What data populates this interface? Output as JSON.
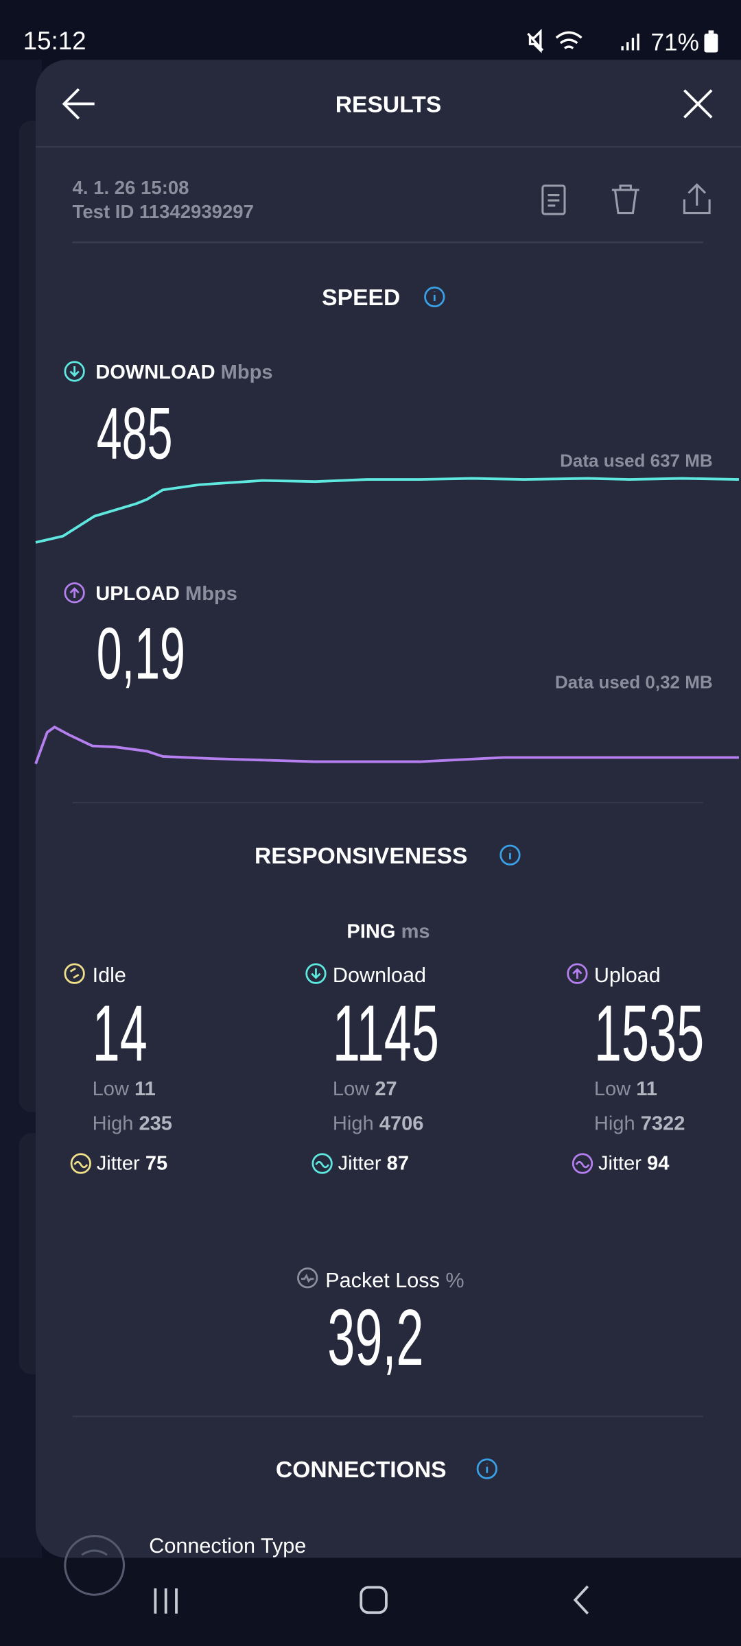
{
  "status_bar": {
    "time": "15:12",
    "battery": "71%"
  },
  "header": {
    "title": "RESULTS"
  },
  "test": {
    "date": "4. 1. 26 15:08",
    "test_id": "Test ID 11342939297"
  },
  "speed": {
    "title": "SPEED",
    "download": {
      "label": "DOWNLOAD",
      "unit": "Mbps",
      "value": "485",
      "data_used": "Data used 637 MB"
    },
    "upload": {
      "label": "UPLOAD",
      "unit": "Mbps",
      "value": "0,19",
      "data_used": "Data used 0,32 MB"
    }
  },
  "responsiveness": {
    "title": "RESPONSIVENESS",
    "ping": {
      "label": "PING",
      "unit": "ms"
    },
    "columns": [
      {
        "label": "Idle",
        "value": "14",
        "low_label": "Low",
        "low": "11",
        "high_label": "High",
        "high": "235",
        "jitter_label": "Jitter",
        "jitter": "75"
      },
      {
        "label": "Download",
        "value": "1145",
        "low_label": "Low",
        "low": "27",
        "high_label": "High",
        "high": "4706",
        "jitter_label": "Jitter",
        "jitter": "87"
      },
      {
        "label": "Upload",
        "value": "1535",
        "low_label": "Low",
        "low": "11",
        "high_label": "High",
        "high": "7322",
        "jitter_label": "Jitter",
        "jitter": "94"
      }
    ]
  },
  "packet_loss": {
    "label": "Packet Loss",
    "unit": "%",
    "value": "39,2"
  },
  "connections": {
    "title": "CONNECTIONS",
    "items": [
      "Connection Type"
    ]
  }
}
